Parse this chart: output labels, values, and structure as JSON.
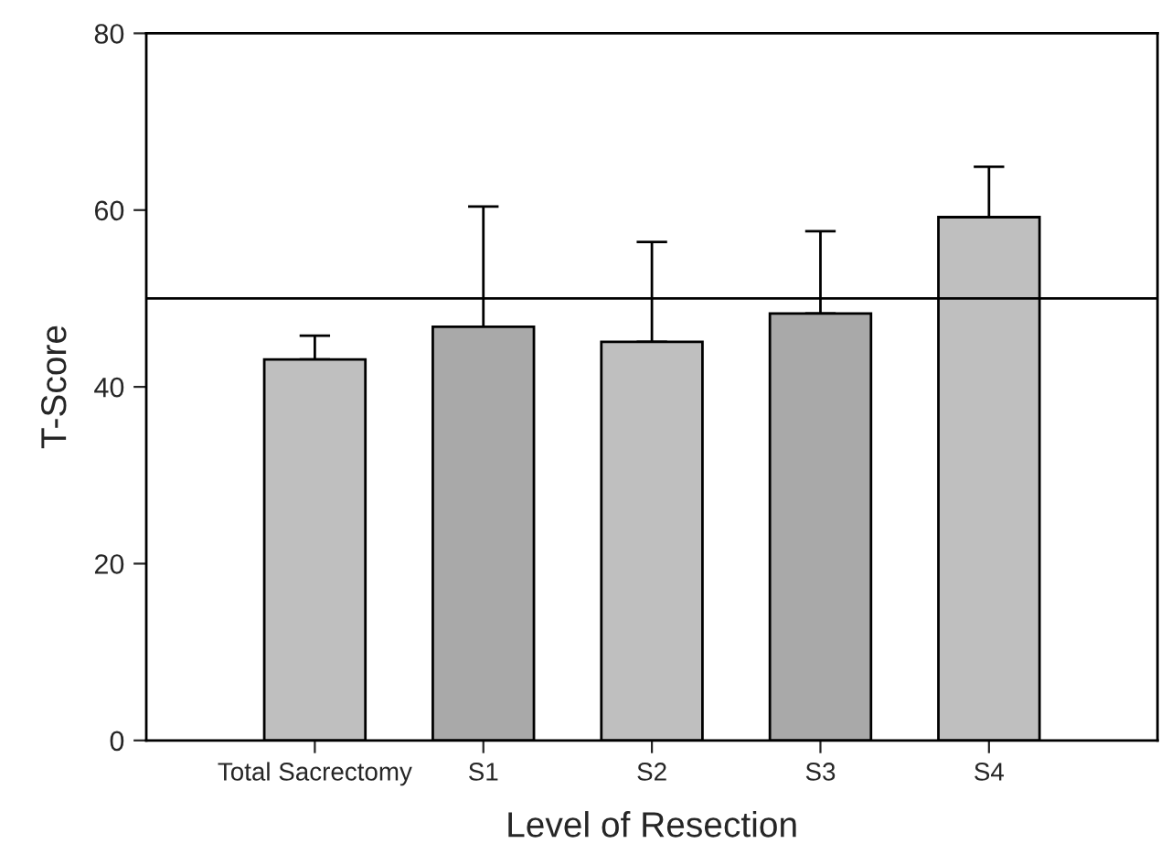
{
  "chart_data": {
    "type": "bar",
    "xlabel": "Level of Resection",
    "ylabel": "T-Score",
    "categories": [
      "Total Sacrectomy",
      "S1",
      "S2",
      "S3",
      "S4"
    ],
    "values": [
      43.1,
      46.8,
      45.1,
      48.3,
      59.2
    ],
    "colors": [
      "#bfbfbf",
      "#a9a9a9",
      "#bfbfbf",
      "#a9a9a9",
      "#bfbfbf"
    ],
    "errors": [
      [
        43.1,
        45.8
      ],
      [
        46.8,
        60.4
      ],
      [
        45.1,
        56.4
      ],
      [
        48.3,
        57.6
      ],
      [
        59.2,
        64.9
      ]
    ],
    "ylim": [
      0,
      80
    ],
    "yticks": [
      0,
      20,
      40,
      60,
      80
    ],
    "ref_lines": [
      {
        "axis": "y",
        "value": 50,
        "color": "#000000"
      }
    ],
    "grid": false,
    "legend": false
  }
}
